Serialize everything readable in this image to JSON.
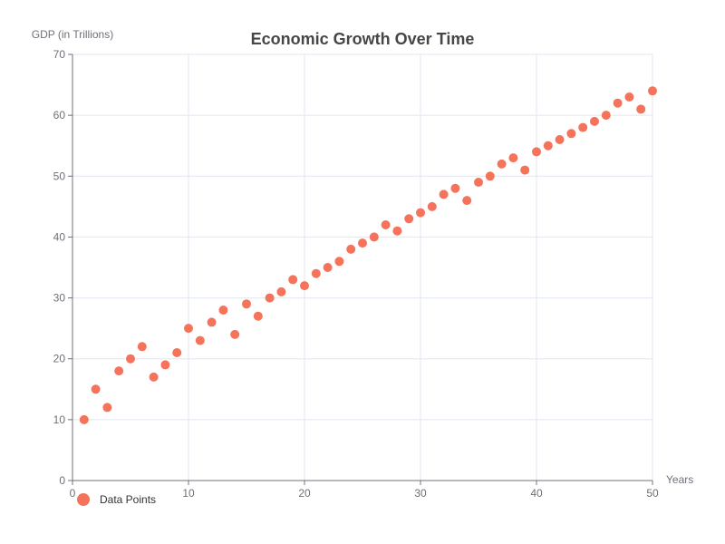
{
  "chart_data": {
    "type": "scatter",
    "title": "Economic Growth Over Time",
    "xlabel": "Years",
    "ylabel": "GDP (in Trillions)",
    "xlim": [
      0,
      50
    ],
    "ylim": [
      0,
      70
    ],
    "xticks": [
      0,
      10,
      20,
      30,
      40,
      50
    ],
    "yticks": [
      0,
      10,
      20,
      30,
      40,
      50,
      60,
      70
    ],
    "grid": true,
    "legend_position": "bottom-left",
    "series": [
      {
        "name": "Data Points",
        "color": "#f5735a",
        "x": [
          1,
          2,
          3,
          4,
          5,
          6,
          7,
          8,
          9,
          10,
          11,
          12,
          13,
          14,
          15,
          16,
          17,
          18,
          19,
          20,
          21,
          22,
          23,
          24,
          25,
          26,
          27,
          28,
          29,
          30,
          31,
          32,
          33,
          34,
          35,
          36,
          37,
          38,
          39,
          40,
          41,
          42,
          43,
          44,
          45,
          46,
          47,
          48,
          49,
          50
        ],
        "y": [
          10,
          15,
          12,
          18,
          20,
          22,
          17,
          19,
          21,
          25,
          23,
          26,
          28,
          24,
          29,
          27,
          30,
          31,
          33,
          32,
          34,
          35,
          36,
          38,
          39,
          40,
          42,
          41,
          43,
          44,
          45,
          47,
          48,
          46,
          49,
          50,
          52,
          53,
          51,
          54,
          55,
          56,
          57,
          58,
          59,
          60,
          62,
          63,
          61,
          64
        ]
      }
    ]
  }
}
